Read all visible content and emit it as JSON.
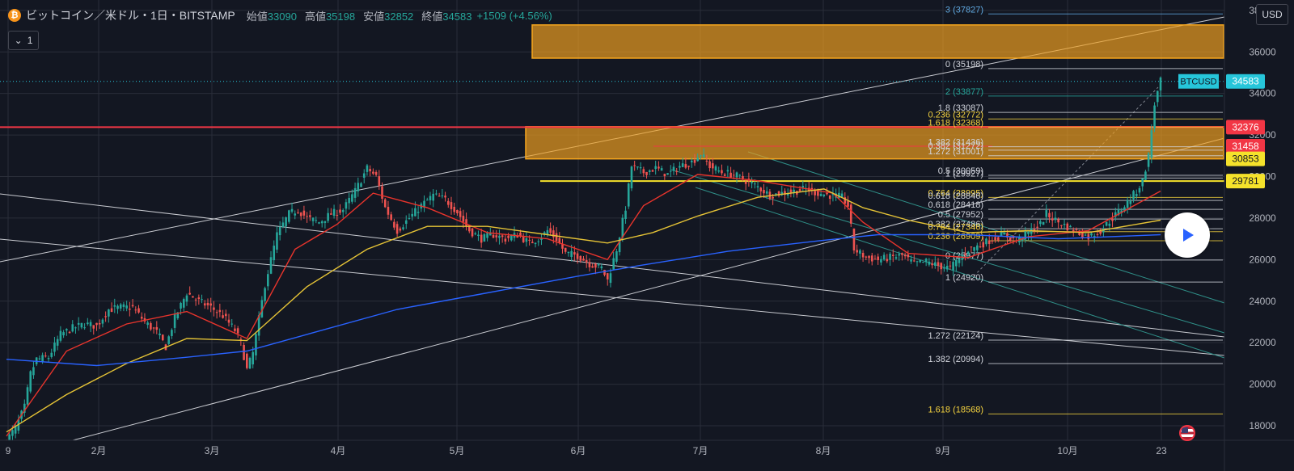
{
  "header": {
    "coin_symbol": "₿",
    "title": "ビットコイン／米ドル・1日・BITSTAMP",
    "open_label": "始値",
    "open_value": "33090",
    "high_label": "高値",
    "high_value": "35198",
    "low_label": "安値",
    "low_value": "32852",
    "close_label": "終値",
    "close_value": "34583",
    "change": "+1509 (+4.56%)"
  },
  "collapse_label": "1",
  "currency_button": "USD",
  "colors": {
    "background": "#131722",
    "grid": "#2a2e39",
    "up": "#26a69a",
    "down": "#ef5350",
    "ema_fast": "#e8342c",
    "ema_mid": "#e5c336",
    "ema_slow": "#2962ff",
    "zone": "#f2a11f",
    "support": "#f5e22b",
    "resistance": "#f23645",
    "fib_text": "#d1d4dc",
    "fib_yellow": "#f5d33f",
    "fib_blue": "#5fa8e0"
  },
  "chart_data": {
    "type": "candlestick",
    "symbol": "BTCUSD",
    "x_axis_labels": [
      "9",
      "2月",
      "3月",
      "4月",
      "5月",
      "6月",
      "7月",
      "8月",
      "9月",
      "10月",
      "23"
    ],
    "y_axis_ticks": [
      18000,
      20000,
      22000,
      24000,
      26000,
      28000,
      30000,
      32000,
      34000,
      36000,
      38000
    ],
    "ylim": [
      17300,
      38500
    ],
    "last_price": 34583,
    "price_badges": [
      {
        "label": "BTCUSD",
        "value": 34583,
        "color": "#26c6da"
      },
      {
        "value": 32376,
        "color": "#f23645"
      },
      {
        "value": 31458,
        "color": "#f23645"
      },
      {
        "value": 30853,
        "color": "#f5e22b"
      },
      {
        "value": 29781,
        "color": "#f5e22b"
      }
    ],
    "horizontal_levels": [
      {
        "value": 32376,
        "kind": "resistance",
        "color": "#f23645"
      },
      {
        "value": 29781,
        "kind": "support",
        "color": "#f5e22b"
      }
    ],
    "zones": [
      {
        "from": 35700,
        "to": 37300,
        "start_month": "5月"
      },
      {
        "from": 30850,
        "to": 32400,
        "start_month": "5月"
      }
    ],
    "fib_labels": [
      {
        "text": "3 (37827)",
        "value": 37827,
        "color": "#5fa8e0"
      },
      {
        "text": "0 (35198)",
        "value": 35198,
        "color": "#d1d4dc"
      },
      {
        "text": "2 (33877)",
        "value": 33877,
        "color": "#26a69a"
      },
      {
        "text": "1.8 (33087)",
        "value": 33087,
        "color": "#d1d4dc"
      },
      {
        "text": "0.236 (32772)",
        "value": 32772,
        "color": "#f5d33f"
      },
      {
        "text": "1.618 (32368)",
        "value": 32368,
        "color": "#f5d33f"
      },
      {
        "text": "1.382 (31436)",
        "value": 31436,
        "color": "#d1d4dc"
      },
      {
        "text": "0.382 (31272)",
        "value": 31272,
        "color": "#d1d4dc"
      },
      {
        "text": "1.272 (31001)",
        "value": 31001,
        "color": "#d1d4dc"
      },
      {
        "text": "0.5 (30059)",
        "value": 30059,
        "color": "#d1d4dc"
      },
      {
        "text": "1 (29927)",
        "value": 29927,
        "color": "#d1d4dc"
      },
      {
        "text": "0.764 (28995)",
        "value": 28995,
        "color": "#f5d33f"
      },
      {
        "text": "0.618 (28846)",
        "value": 28846,
        "color": "#d1d4dc"
      },
      {
        "text": "0.618 (28418)",
        "value": 28418,
        "color": "#d1d4dc"
      },
      {
        "text": "0.5 (27952)",
        "value": 27952,
        "color": "#d1d4dc"
      },
      {
        "text": "0.382 (27486)",
        "value": 27486,
        "color": "#d1d4dc"
      },
      {
        "text": "0.764 (27346)",
        "value": 27346,
        "color": "#f5d33f"
      },
      {
        "text": "0.236 (26909)",
        "value": 26909,
        "color": "#f5d33f"
      },
      {
        "text": "0 (25977)",
        "value": 25977,
        "color": "#d1d4dc"
      },
      {
        "text": "1 (24920)",
        "value": 24920,
        "color": "#d1d4dc"
      },
      {
        "text": "1.272 (22124)",
        "value": 22124,
        "color": "#d1d4dc"
      },
      {
        "text": "1.382 (20994)",
        "value": 20994,
        "color": "#d1d4dc"
      },
      {
        "text": "1.618 (18568)",
        "value": 18568,
        "color": "#f5d33f"
      }
    ],
    "close_path": [
      [
        0,
        17300
      ],
      [
        3,
        17900
      ],
      [
        6,
        18900
      ],
      [
        8,
        20500
      ],
      [
        10,
        21200
      ],
      [
        14,
        21300
      ],
      [
        18,
        22400
      ],
      [
        22,
        22700
      ],
      [
        26,
        22900
      ],
      [
        30,
        22800
      ],
      [
        34,
        23600
      ],
      [
        38,
        23700
      ],
      [
        42,
        23700
      ],
      [
        46,
        23000
      ],
      [
        50,
        22500
      ],
      [
        53,
        21800
      ],
      [
        56,
        23200
      ],
      [
        60,
        24400
      ],
      [
        64,
        24000
      ],
      [
        68,
        23700
      ],
      [
        72,
        23300
      ],
      [
        76,
        22600
      ],
      [
        78,
        22000
      ],
      [
        80,
        20700
      ],
      [
        82,
        21500
      ],
      [
        86,
        24800
      ],
      [
        90,
        27200
      ],
      [
        94,
        28200
      ],
      [
        97,
        28400
      ],
      [
        100,
        28000
      ],
      [
        104,
        27800
      ],
      [
        108,
        28200
      ],
      [
        112,
        28400
      ],
      [
        116,
        29300
      ],
      [
        120,
        30400
      ],
      [
        123,
        30000
      ],
      [
        126,
        28500
      ],
      [
        130,
        27400
      ],
      [
        134,
        28000
      ],
      [
        138,
        28600
      ],
      [
        142,
        29100
      ],
      [
        146,
        28900
      ],
      [
        150,
        28300
      ],
      [
        154,
        27400
      ],
      [
        158,
        27000
      ],
      [
        162,
        27200
      ],
      [
        166,
        27000
      ],
      [
        170,
        27200
      ],
      [
        174,
        26800
      ],
      [
        178,
        27100
      ],
      [
        180,
        27400
      ],
      [
        183,
        27000
      ],
      [
        186,
        26300
      ],
      [
        190,
        26200
      ],
      [
        194,
        25800
      ],
      [
        198,
        25600
      ],
      [
        200,
        25000
      ],
      [
        203,
        26500
      ],
      [
        206,
        28500
      ],
      [
        208,
        30500
      ],
      [
        212,
        30200
      ],
      [
        216,
        30400
      ],
      [
        220,
        30100
      ],
      [
        224,
        30500
      ],
      [
        228,
        30700
      ],
      [
        231,
        31100
      ],
      [
        234,
        30500
      ],
      [
        238,
        30200
      ],
      [
        242,
        30100
      ],
      [
        246,
        29800
      ],
      [
        250,
        29500
      ],
      [
        254,
        29100
      ],
      [
        258,
        29200
      ],
      [
        262,
        29300
      ],
      [
        266,
        29400
      ],
      [
        270,
        29200
      ],
      [
        274,
        29100
      ],
      [
        278,
        29000
      ],
      [
        280,
        28600
      ],
      [
        282,
        26500
      ],
      [
        286,
        26100
      ],
      [
        290,
        26000
      ],
      [
        294,
        26100
      ],
      [
        298,
        26200
      ],
      [
        302,
        25800
      ],
      [
        306,
        25900
      ],
      [
        310,
        25700
      ],
      [
        314,
        25600
      ],
      [
        316,
        25900
      ],
      [
        320,
        26500
      ],
      [
        324,
        26700
      ],
      [
        328,
        27000
      ],
      [
        332,
        27200
      ],
      [
        336,
        26900
      ],
      [
        340,
        27300
      ],
      [
        344,
        27700
      ],
      [
        346,
        28200
      ],
      [
        350,
        27800
      ],
      [
        354,
        27500
      ],
      [
        358,
        27200
      ],
      [
        360,
        27100
      ],
      [
        364,
        27400
      ],
      [
        368,
        28000
      ],
      [
        372,
        28600
      ],
      [
        376,
        29300
      ],
      [
        378,
        29800
      ],
      [
        380,
        31000
      ],
      [
        382,
        33500
      ],
      [
        384,
        34583
      ]
    ],
    "moving_averages": [
      {
        "name": "EMA fast",
        "color": "#e8342c",
        "points": [
          [
            0,
            17500
          ],
          [
            20,
            21600
          ],
          [
            40,
            22900
          ],
          [
            60,
            23500
          ],
          [
            80,
            22200
          ],
          [
            96,
            26500
          ],
          [
            110,
            27700
          ],
          [
            122,
            29200
          ],
          [
            140,
            28500
          ],
          [
            160,
            27300
          ],
          [
            180,
            27000
          ],
          [
            200,
            26000
          ],
          [
            212,
            28600
          ],
          [
            230,
            30100
          ],
          [
            250,
            29800
          ],
          [
            275,
            29200
          ],
          [
            285,
            27800
          ],
          [
            300,
            26300
          ],
          [
            320,
            26100
          ],
          [
            340,
            27100
          ],
          [
            360,
            27400
          ],
          [
            384,
            29300
          ]
        ]
      },
      {
        "name": "EMA mid",
        "color": "#e5c336",
        "points": [
          [
            0,
            17700
          ],
          [
            20,
            19500
          ],
          [
            40,
            21000
          ],
          [
            60,
            22200
          ],
          [
            80,
            22100
          ],
          [
            100,
            24700
          ],
          [
            120,
            26500
          ],
          [
            140,
            27600
          ],
          [
            160,
            27600
          ],
          [
            180,
            27200
          ],
          [
            200,
            26800
          ],
          [
            215,
            27300
          ],
          [
            230,
            28100
          ],
          [
            250,
            29000
          ],
          [
            272,
            29400
          ],
          [
            285,
            28500
          ],
          [
            300,
            27900
          ],
          [
            320,
            27300
          ],
          [
            340,
            27400
          ],
          [
            360,
            27300
          ],
          [
            384,
            27900
          ]
        ]
      },
      {
        "name": "EMA slow",
        "color": "#2962ff",
        "points": [
          [
            0,
            21200
          ],
          [
            30,
            20900
          ],
          [
            60,
            21300
          ],
          [
            80,
            21600
          ],
          [
            100,
            22400
          ],
          [
            130,
            23600
          ],
          [
            160,
            24400
          ],
          [
            190,
            25200
          ],
          [
            210,
            25700
          ],
          [
            240,
            26400
          ],
          [
            270,
            26900
          ],
          [
            290,
            27200
          ],
          [
            320,
            27200
          ],
          [
            350,
            27000
          ],
          [
            384,
            27200
          ]
        ]
      }
    ]
  }
}
